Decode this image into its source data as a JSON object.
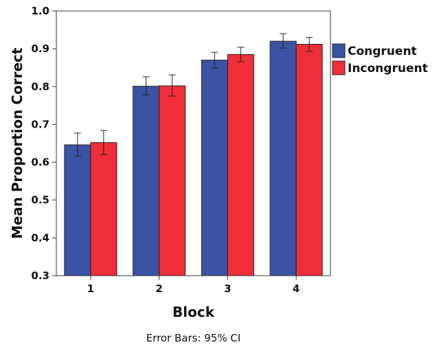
{
  "chart_data": {
    "type": "bar",
    "title": "",
    "xlabel": "Block",
    "ylabel": "Mean Proportion Correct",
    "categories": [
      "1",
      "2",
      "3",
      "4"
    ],
    "ylim": [
      0.3,
      1.0
    ],
    "yticks": [
      "0.3",
      "0.4",
      "0.5",
      "0.6",
      "0.7",
      "0.8",
      "0.9",
      "1.0"
    ],
    "legend_position": "right",
    "grid": false,
    "note": "Error Bars: 95% CI",
    "series": [
      {
        "name": "Congruent",
        "color": "#3b53a4",
        "values": [
          0.646,
          0.801,
          0.87,
          0.92
        ],
        "ci_low": [
          0.616,
          0.778,
          0.849,
          0.902
        ],
        "ci_high": [
          0.677,
          0.826,
          0.891,
          0.94
        ]
      },
      {
        "name": "Incongruent",
        "color": "#ee2e38",
        "values": [
          0.652,
          0.802,
          0.885,
          0.912
        ],
        "ci_low": [
          0.62,
          0.775,
          0.866,
          0.893
        ],
        "ci_high": [
          0.684,
          0.831,
          0.904,
          0.93
        ]
      }
    ]
  }
}
